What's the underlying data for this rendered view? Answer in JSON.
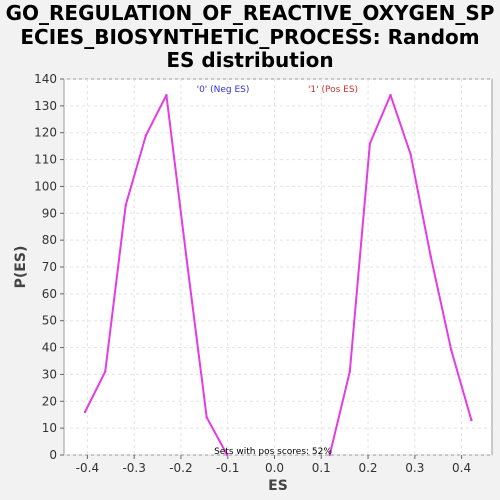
{
  "chart_data": {
    "type": "line",
    "title_lines": [
      "GO_REGULATION_OF_REACTIVE_OXYGEN_SP",
      "ECIES_BIOSYNTHETIC_PROCESS: Random",
      "ES distribution"
    ],
    "xlabel": "ES",
    "ylabel": "P(ES)",
    "xlim": [
      -0.45,
      0.465
    ],
    "ylim": [
      0,
      140
    ],
    "xticks": [
      -0.4,
      -0.3,
      -0.2,
      -0.1,
      0.0,
      0.1,
      0.2,
      0.3,
      0.4
    ],
    "xtick_labels": [
      "-0.4",
      "-0.3",
      "-0.2",
      "-0.1",
      "0.0",
      "0.1",
      "0.2",
      "0.3",
      "0.4"
    ],
    "yticks": [
      0,
      10,
      20,
      30,
      40,
      50,
      60,
      70,
      80,
      90,
      100,
      110,
      120,
      130,
      140
    ],
    "grid": true,
    "legend_position": "top",
    "series": [
      {
        "name": "'0' (Neg ES)",
        "color": "#e43ce4",
        "legend_color": "#3333cc",
        "x": [
          -0.405,
          -0.362,
          -0.318,
          -0.275,
          -0.231,
          -0.188,
          -0.145,
          -0.101
        ],
        "y": [
          16,
          31,
          93,
          119,
          134,
          73,
          14,
          0
        ]
      },
      {
        "name": "'1' (Pos ES)",
        "color": "#e43ce4",
        "legend_color": "#cc3333",
        "x": [
          0.118,
          0.161,
          0.204,
          0.248,
          0.291,
          0.334,
          0.378,
          0.421
        ],
        "y": [
          0,
          31,
          116,
          134,
          112,
          74,
          39,
          13
        ]
      }
    ],
    "annotation": "Sets with pos scores: 52%"
  }
}
